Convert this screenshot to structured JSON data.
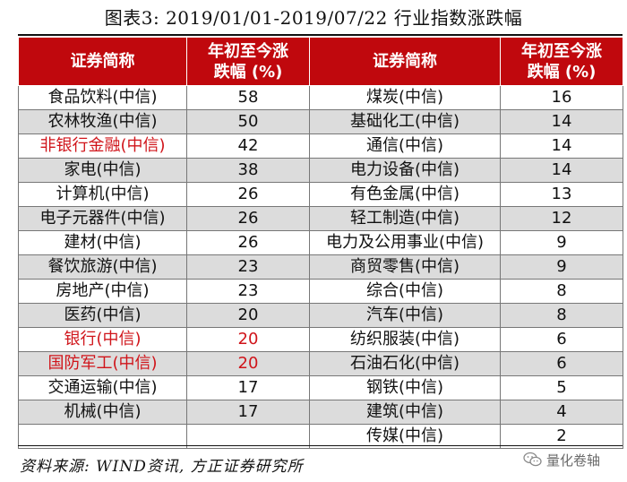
{
  "title": "图表3:   2019/01/01-2019/07/22 行业指数涨跌幅",
  "header": {
    "name_col": "证券简称",
    "value_col_line1": "年初至今涨",
    "value_col_line2": "跌幅 (%)"
  },
  "colors": {
    "header_bg": "#c0080d",
    "highlight_text": "#d0141a",
    "alt_row": "#dcdcdc"
  },
  "rows": [
    {
      "left_name": "食品饮料(中信)",
      "left_value": "58",
      "right_name": "煤炭(中信)",
      "right_value": "16"
    },
    {
      "left_name": "农林牧渔(中信)",
      "left_value": "50",
      "right_name": "基础化工(中信)",
      "right_value": "14"
    },
    {
      "left_name": "非银行金融(中信)",
      "left_value": "42",
      "right_name": "通信(中信)",
      "right_value": "14"
    },
    {
      "left_name": "家电(中信)",
      "left_value": "38",
      "right_name": "电力设备(中信)",
      "right_value": "14"
    },
    {
      "left_name": "计算机(中信)",
      "left_value": "26",
      "right_name": "有色金属(中信)",
      "right_value": "13"
    },
    {
      "left_name": "电子元器件(中信)",
      "left_value": "26",
      "right_name": "轻工制造(中信)",
      "right_value": "12"
    },
    {
      "left_name": "建材(中信)",
      "left_value": "26",
      "right_name": "电力及公用事业(中信)",
      "right_value": "9"
    },
    {
      "left_name": "餐饮旅游(中信)",
      "left_value": "23",
      "right_name": "商贸零售(中信)",
      "right_value": "9"
    },
    {
      "left_name": "房地产(中信)",
      "left_value": "23",
      "right_name": "综合(中信)",
      "right_value": "8"
    },
    {
      "left_name": "医药(中信)",
      "left_value": "20",
      "right_name": "汽车(中信)",
      "right_value": "8"
    },
    {
      "left_name": "银行(中信)",
      "left_value": "20",
      "right_name": "纺织服装(中信)",
      "right_value": "6"
    },
    {
      "left_name": "国防军工(中信)",
      "left_value": "20",
      "right_name": "石油石化(中信)",
      "right_value": "6"
    },
    {
      "left_name": "交通运输(中信)",
      "left_value": "17",
      "right_name": "钢铁(中信)",
      "right_value": "5"
    },
    {
      "left_name": "机械(中信)",
      "left_value": "17",
      "right_name": "建筑(中信)",
      "right_value": "4"
    },
    {
      "left_name": "",
      "left_value": "",
      "right_name": "传媒(中信)",
      "right_value": "2"
    }
  ],
  "source": "资料来源: WIND资讯, 方正证券研究所",
  "watermark": {
    "text": "量化卷轴",
    "icon": "wechat-icon"
  }
}
